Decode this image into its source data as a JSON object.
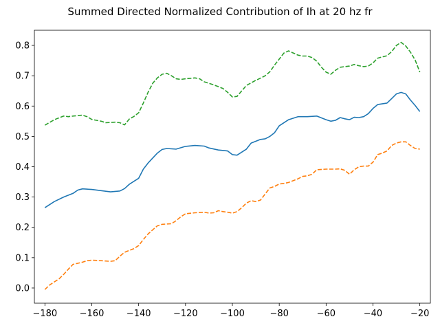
{
  "chart_data": {
    "type": "line",
    "title": "Summed Directed Normalized Contribution of Ih at 20 hz fr",
    "xlabel": "",
    "ylabel": "",
    "xlim": [
      -184.5,
      -15.5
    ],
    "ylim": [
      -0.05,
      0.85
    ],
    "xticks": [
      -180,
      -160,
      -140,
      -120,
      -100,
      -80,
      -60,
      -40,
      -20
    ],
    "yticks": [
      0.0,
      0.1,
      0.2,
      0.3,
      0.4,
      0.5,
      0.6,
      0.7,
      0.8
    ],
    "xtick_labels": [
      "−180",
      "−160",
      "−140",
      "−120",
      "−100",
      "−80",
      "−60",
      "−40",
      "−20"
    ],
    "ytick_labels": [
      "0.0",
      "0.1",
      "0.2",
      "0.3",
      "0.4",
      "0.5",
      "0.6",
      "0.7",
      "0.8"
    ],
    "grid": false,
    "legend": "none",
    "series": [
      {
        "color": "#1f77b4",
        "dash": "solid",
        "points": [
          [
            -180,
            0.265
          ],
          [
            -176,
            0.285
          ],
          [
            -172,
            0.3
          ],
          [
            -168,
            0.312
          ],
          [
            -166,
            0.323
          ],
          [
            -164,
            0.327
          ],
          [
            -160,
            0.325
          ],
          [
            -156,
            0.321
          ],
          [
            -152,
            0.317
          ],
          [
            -148,
            0.32
          ],
          [
            -146,
            0.328
          ],
          [
            -144,
            0.342
          ],
          [
            -140,
            0.362
          ],
          [
            -138,
            0.392
          ],
          [
            -136,
            0.412
          ],
          [
            -132,
            0.445
          ],
          [
            -130,
            0.457
          ],
          [
            -128,
            0.46
          ],
          [
            -124,
            0.458
          ],
          [
            -120,
            0.467
          ],
          [
            -116,
            0.47
          ],
          [
            -112,
            0.468
          ],
          [
            -110,
            0.462
          ],
          [
            -106,
            0.455
          ],
          [
            -102,
            0.452
          ],
          [
            -100,
            0.44
          ],
          [
            -98,
            0.438
          ],
          [
            -94,
            0.458
          ],
          [
            -92,
            0.478
          ],
          [
            -88,
            0.49
          ],
          [
            -86,
            0.492
          ],
          [
            -84,
            0.5
          ],
          [
            -82,
            0.512
          ],
          [
            -80,
            0.535
          ],
          [
            -76,
            0.555
          ],
          [
            -72,
            0.565
          ],
          [
            -68,
            0.565
          ],
          [
            -64,
            0.567
          ],
          [
            -60,
            0.555
          ],
          [
            -58,
            0.55
          ],
          [
            -56,
            0.553
          ],
          [
            -54,
            0.562
          ],
          [
            -52,
            0.558
          ],
          [
            -50,
            0.555
          ],
          [
            -48,
            0.563
          ],
          [
            -46,
            0.562
          ],
          [
            -44,
            0.565
          ],
          [
            -42,
            0.575
          ],
          [
            -40,
            0.592
          ],
          [
            -38,
            0.605
          ],
          [
            -34,
            0.61
          ],
          [
            -32,
            0.625
          ],
          [
            -30,
            0.64
          ],
          [
            -28,
            0.645
          ],
          [
            -26,
            0.64
          ],
          [
            -24,
            0.62
          ],
          [
            -22,
            0.602
          ],
          [
            -20,
            0.582
          ]
        ]
      },
      {
        "color": "#ff7f0e",
        "dash": "dashed",
        "points": [
          [
            -180,
            -0.005
          ],
          [
            -178,
            0.01
          ],
          [
            -176,
            0.02
          ],
          [
            -174,
            0.03
          ],
          [
            -172,
            0.045
          ],
          [
            -170,
            0.062
          ],
          [
            -168,
            0.078
          ],
          [
            -164,
            0.085
          ],
          [
            -162,
            0.09
          ],
          [
            -160,
            0.092
          ],
          [
            -156,
            0.09
          ],
          [
            -152,
            0.088
          ],
          [
            -150,
            0.09
          ],
          [
            -148,
            0.105
          ],
          [
            -146,
            0.118
          ],
          [
            -142,
            0.13
          ],
          [
            -140,
            0.14
          ],
          [
            -138,
            0.16
          ],
          [
            -136,
            0.178
          ],
          [
            -134,
            0.192
          ],
          [
            -132,
            0.205
          ],
          [
            -130,
            0.21
          ],
          [
            -126,
            0.212
          ],
          [
            -124,
            0.222
          ],
          [
            -122,
            0.235
          ],
          [
            -120,
            0.245
          ],
          [
            -116,
            0.248
          ],
          [
            -112,
            0.25
          ],
          [
            -110,
            0.247
          ],
          [
            -108,
            0.248
          ],
          [
            -106,
            0.255
          ],
          [
            -104,
            0.252
          ],
          [
            -102,
            0.25
          ],
          [
            -100,
            0.247
          ],
          [
            -98,
            0.252
          ],
          [
            -96,
            0.265
          ],
          [
            -94,
            0.28
          ],
          [
            -92,
            0.288
          ],
          [
            -90,
            0.285
          ],
          [
            -88,
            0.29
          ],
          [
            -86,
            0.31
          ],
          [
            -84,
            0.33
          ],
          [
            -82,
            0.335
          ],
          [
            -80,
            0.343
          ],
          [
            -78,
            0.345
          ],
          [
            -76,
            0.348
          ],
          [
            -72,
            0.36
          ],
          [
            -70,
            0.368
          ],
          [
            -68,
            0.37
          ],
          [
            -66,
            0.375
          ],
          [
            -64,
            0.39
          ],
          [
            -60,
            0.392
          ],
          [
            -56,
            0.392
          ],
          [
            -54,
            0.393
          ],
          [
            -52,
            0.388
          ],
          [
            -50,
            0.375
          ],
          [
            -48,
            0.39
          ],
          [
            -46,
            0.4
          ],
          [
            -44,
            0.402
          ],
          [
            -42,
            0.402
          ],
          [
            -40,
            0.415
          ],
          [
            -38,
            0.44
          ],
          [
            -36,
            0.445
          ],
          [
            -34,
            0.452
          ],
          [
            -32,
            0.47
          ],
          [
            -30,
            0.478
          ],
          [
            -28,
            0.482
          ],
          [
            -26,
            0.482
          ],
          [
            -24,
            0.47
          ],
          [
            -22,
            0.46
          ],
          [
            -20,
            0.458
          ]
        ]
      },
      {
        "color": "#2ca02c",
        "dash": "dashed",
        "points": [
          [
            -180,
            0.537
          ],
          [
            -176,
            0.555
          ],
          [
            -172,
            0.567
          ],
          [
            -170,
            0.565
          ],
          [
            -168,
            0.567
          ],
          [
            -164,
            0.57
          ],
          [
            -162,
            0.565
          ],
          [
            -160,
            0.556
          ],
          [
            -156,
            0.55
          ],
          [
            -154,
            0.545
          ],
          [
            -150,
            0.547
          ],
          [
            -148,
            0.545
          ],
          [
            -146,
            0.538
          ],
          [
            -144,
            0.557
          ],
          [
            -142,
            0.566
          ],
          [
            -140,
            0.578
          ],
          [
            -138,
            0.61
          ],
          [
            -136,
            0.645
          ],
          [
            -134,
            0.675
          ],
          [
            -132,
            0.693
          ],
          [
            -130,
            0.705
          ],
          [
            -128,
            0.708
          ],
          [
            -126,
            0.7
          ],
          [
            -124,
            0.69
          ],
          [
            -122,
            0.688
          ],
          [
            -120,
            0.69
          ],
          [
            -116,
            0.693
          ],
          [
            -114,
            0.69
          ],
          [
            -112,
            0.68
          ],
          [
            -108,
            0.67
          ],
          [
            -104,
            0.658
          ],
          [
            -102,
            0.645
          ],
          [
            -100,
            0.63
          ],
          [
            -98,
            0.632
          ],
          [
            -96,
            0.65
          ],
          [
            -94,
            0.668
          ],
          [
            -90,
            0.685
          ],
          [
            -88,
            0.692
          ],
          [
            -86,
            0.7
          ],
          [
            -84,
            0.713
          ],
          [
            -82,
            0.735
          ],
          [
            -80,
            0.755
          ],
          [
            -78,
            0.775
          ],
          [
            -76,
            0.782
          ],
          [
            -74,
            0.775
          ],
          [
            -72,
            0.768
          ],
          [
            -70,
            0.765
          ],
          [
            -68,
            0.765
          ],
          [
            -66,
            0.76
          ],
          [
            -64,
            0.748
          ],
          [
            -62,
            0.728
          ],
          [
            -60,
            0.712
          ],
          [
            -58,
            0.705
          ],
          [
            -56,
            0.718
          ],
          [
            -54,
            0.728
          ],
          [
            -50,
            0.732
          ],
          [
            -48,
            0.737
          ],
          [
            -46,
            0.733
          ],
          [
            -44,
            0.73
          ],
          [
            -42,
            0.732
          ],
          [
            -40,
            0.742
          ],
          [
            -38,
            0.758
          ],
          [
            -36,
            0.762
          ],
          [
            -34,
            0.766
          ],
          [
            -32,
            0.78
          ],
          [
            -30,
            0.8
          ],
          [
            -28,
            0.81
          ],
          [
            -26,
            0.798
          ],
          [
            -24,
            0.778
          ],
          [
            -22,
            0.752
          ],
          [
            -20,
            0.712
          ]
        ]
      }
    ]
  }
}
